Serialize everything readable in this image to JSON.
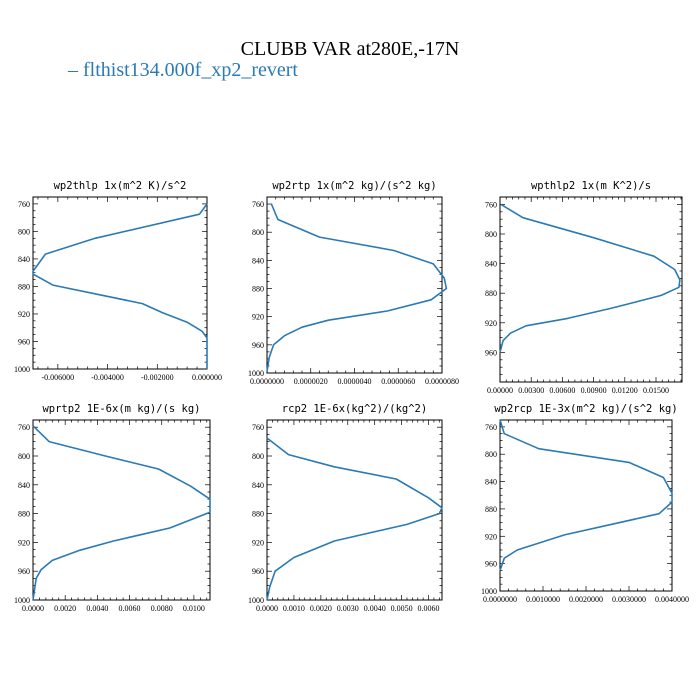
{
  "title": "CLUBB VAR at280E,-17N",
  "legend": [
    {
      "label": "flthist134.000f_xp2_revert",
      "color": "#2a7ab5"
    }
  ],
  "chart_data": [
    {
      "type": "line",
      "title": "wp2thlp  1x(m^2 K)/s^2",
      "xlim": [
        -0.007,
        0.0
      ],
      "ylim": [
        1000,
        750
      ],
      "ylabel": "",
      "xticks": [
        -0.006,
        -0.004,
        -0.002,
        0.0
      ],
      "xtick_labels": [
        "-0.006000",
        "-0.004000",
        "-0.002000",
        "0.000000"
      ],
      "yticks": [
        760,
        800,
        840,
        880,
        920,
        960,
        1000
      ],
      "series": [
        {
          "x": [
            0.0,
            -0.0003,
            -0.0045,
            -0.0065,
            -0.007,
            -0.007,
            -0.0062,
            -0.0026,
            -0.0018,
            -0.0008,
            -0.0002,
            0.0,
            0.0,
            0.0
          ],
          "y": [
            760,
            775,
            810,
            833,
            858,
            862,
            878,
            905,
            918,
            932,
            945,
            955,
            975,
            1000
          ]
        }
      ]
    },
    {
      "type": "line",
      "title": "wp2rtp  1x(m^2 kg)/(s^2 kg)",
      "xlim": [
        0.0,
        8e-06
      ],
      "ylim": [
        1000,
        750
      ],
      "xticks": [
        0.0,
        2e-06,
        4e-06,
        6e-06,
        8e-06
      ],
      "xtick_labels": [
        "0.0000000",
        "0.0000020",
        "0.0000040",
        "0.0000060",
        "0.0000080"
      ],
      "yticks": [
        760,
        800,
        840,
        880,
        920,
        960,
        1000
      ],
      "series": [
        {
          "x": [
            2e-07,
            5e-07,
            2.4e-06,
            5.8e-06,
            7.6e-06,
            8.1e-06,
            8.2e-06,
            7.5e-06,
            5.5e-06,
            2.8e-06,
            1.6e-06,
            8e-07,
            3e-07,
            1e-07,
            0.0
          ],
          "y": [
            760,
            782,
            807,
            826,
            845,
            865,
            880,
            896,
            912,
            925,
            935,
            947,
            960,
            978,
            998
          ]
        }
      ]
    },
    {
      "type": "line",
      "title": "wpthlp2  1x(m K^2)/s",
      "xlim": [
        0.0,
        0.0175
      ],
      "ylim": [
        1000,
        750
      ],
      "xticks": [
        0.0,
        0.003,
        0.006,
        0.009,
        0.012,
        0.015
      ],
      "xtick_labels": [
        "0.00000",
        "0.00300",
        "0.00600",
        "0.00900",
        "0.01200",
        "0.01500"
      ],
      "yticks": [
        760,
        800,
        840,
        880,
        920,
        960
      ],
      "series": [
        {
          "x": [
            0.0001,
            0.0022,
            0.009,
            0.0148,
            0.0168,
            0.0173,
            0.0172,
            0.0155,
            0.0108,
            0.0065,
            0.0025,
            0.001,
            0.0003,
            0.0
          ],
          "y": [
            760,
            778,
            805,
            830,
            848,
            862,
            872,
            883,
            900,
            914,
            924,
            934,
            944,
            960
          ]
        }
      ]
    },
    {
      "type": "line",
      "title": "wprtp2  1E-6x(m kg)/(s kg)",
      "xlim": [
        0.0,
        0.011
      ],
      "ylim": [
        1000,
        750
      ],
      "xticks": [
        0.0,
        0.002,
        0.004,
        0.006,
        0.008,
        0.01
      ],
      "xtick_labels": [
        "0.0000",
        "0.0020",
        "0.0040",
        "0.0060",
        "0.0080",
        "0.0100"
      ],
      "yticks": [
        760,
        800,
        840,
        880,
        920,
        960,
        1000
      ],
      "series": [
        {
          "x": [
            0.0,
            0.001,
            0.0045,
            0.0078,
            0.0098,
            0.011,
            0.011,
            0.0085,
            0.005,
            0.0029,
            0.0012,
            0.0005,
            0.0002,
            0.0001,
            0.0
          ],
          "y": [
            758,
            780,
            800,
            818,
            842,
            860,
            878,
            900,
            918,
            931,
            945,
            958,
            970,
            985,
            1000
          ]
        }
      ]
    },
    {
      "type": "line",
      "title": "rcp2  1E-6x(kg^2)/(kg^2)",
      "xlim": [
        0.0,
        0.0065
      ],
      "ylim": [
        1000,
        750
      ],
      "xticks": [
        0.0,
        0.001,
        0.002,
        0.003,
        0.004,
        0.005,
        0.006
      ],
      "xtick_labels": [
        "0.0000",
        "0.0010",
        "0.0020",
        "0.0030",
        "0.0040",
        "0.0050",
        "0.0060"
      ],
      "yticks": [
        760,
        800,
        840,
        880,
        920,
        960,
        1000
      ],
      "series": [
        {
          "x": [
            0.0,
            0.0008,
            0.0025,
            0.0048,
            0.006,
            0.0065,
            0.0064,
            0.0052,
            0.0025,
            0.001,
            0.0003,
            0.0001,
            0.0
          ],
          "y": [
            775,
            798,
            815,
            832,
            858,
            872,
            880,
            895,
            918,
            941,
            960,
            982,
            1000
          ]
        }
      ]
    },
    {
      "type": "line",
      "title": "wp2rcp  1E-3x(m^2 kg)/(s^2 kg)",
      "xlim": [
        0.0,
        0.004
      ],
      "ylim": [
        1000,
        750
      ],
      "xticks": [
        0.0,
        0.001,
        0.002,
        0.003,
        0.004
      ],
      "xtick_labels": [
        "0.0000000",
        "0.0010000",
        "0.0020000",
        "0.0030000",
        "0.0040000"
      ],
      "yticks": [
        760,
        800,
        840,
        880,
        920,
        960,
        1000
      ],
      "series": [
        {
          "x": [
            0.0,
            0.0001,
            0.0009,
            0.003,
            0.0038,
            0.004,
            0.004,
            0.0037,
            0.0015,
            0.0004,
            0.0001,
            0.0
          ],
          "y": [
            750,
            770,
            792,
            812,
            834,
            857,
            870,
            887,
            918,
            940,
            952,
            970
          ]
        }
      ]
    }
  ]
}
